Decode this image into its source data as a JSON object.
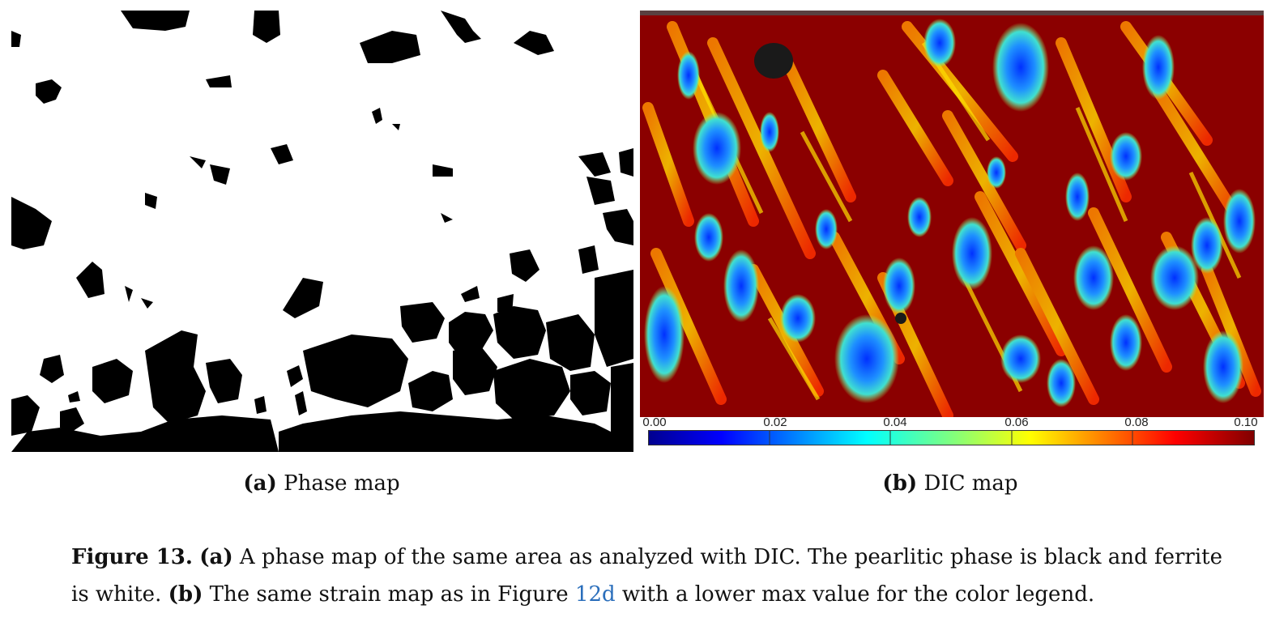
{
  "panel_a": {
    "label": "(a)",
    "title": "Phase map"
  },
  "panel_b": {
    "label": "(b)",
    "title": "DIC map",
    "colorbar": {
      "ticks": [
        "0.00",
        "0.02",
        "0.04",
        "0.06",
        "0.08",
        "0.10"
      ],
      "range": [
        0.0,
        0.1
      ],
      "colormap": "jet"
    }
  },
  "caption": {
    "figure_label": "Figure 13.",
    "a_label": "(a)",
    "a_text": " A phase map of the same area as analyzed with DIC. The pearlitic phase is black and ferrite is white. ",
    "b_label": "(b)",
    "b_text_1": " The same strain map as in Figure ",
    "link_text": "12d",
    "b_text_2": " with a lower max value for the color legend."
  },
  "colors": {
    "pearlite": "#000000",
    "ferrite": "#ffffff",
    "link": "#2a6ebb"
  }
}
